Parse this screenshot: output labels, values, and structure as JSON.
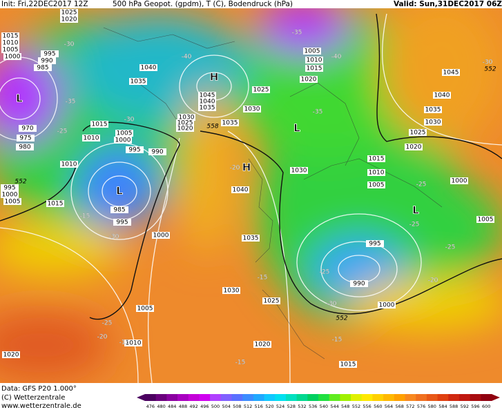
{
  "header": {
    "init": "Init: Fri,22DEC2017 12Z",
    "title": "500 hPa Geopot. (gpdm), T (C), Bodendruck (hPa)",
    "valid": "Valid: Sun,31DEC2017 06Z"
  },
  "footer": {
    "data": "Data: GFS P20 1.000°",
    "copyright": "(C) Wetterzentrale",
    "url": "www.wetterzentrale.de"
  },
  "map": {
    "pressure_labels": [
      "1025",
      "1020",
      "1015",
      "1010",
      "1005",
      "1000",
      "995",
      "990",
      "985",
      "1040",
      "1035",
      "1045",
      "1040",
      "1035",
      "1030",
      "1025",
      "1020",
      "1035",
      "1025",
      "1030",
      "1005",
      "1010",
      "1015",
      "1020",
      "1015",
      "1005",
      "1000",
      "1010",
      "995",
      "990",
      "970",
      "975",
      "980",
      "1010",
      "995",
      "1000",
      "1005",
      "1015",
      "985",
      "995",
      "1000",
      "1040",
      "1035",
      "1030",
      "1015",
      "1010",
      "1005",
      "1000",
      "1005",
      "995",
      "990",
      "1000",
      "1030",
      "1025",
      "1005",
      "1010",
      "1020",
      "1015",
      "1020",
      "1045",
      "1040",
      "1035",
      "1030",
      "1025",
      "1020"
    ],
    "temperature_labels": [
      "-30",
      "-40",
      "-35",
      "-40",
      "-30",
      "-35",
      "-30",
      "-25",
      "-35",
      "-25",
      "-25",
      "-25",
      "-20",
      "-15",
      "-30",
      "-15",
      "-25",
      "-30",
      "-25",
      "-20",
      "-15",
      "-15",
      "-15",
      "-20"
    ],
    "height_labels": [
      "552",
      "558",
      "552",
      "552"
    ],
    "centers": [
      "L",
      "L",
      "H",
      "H",
      "L",
      "L"
    ]
  },
  "colorbar": {
    "labels": [
      "476",
      "480",
      "484",
      "488",
      "492",
      "496",
      "500",
      "504",
      "508",
      "512",
      "516",
      "520",
      "524",
      "528",
      "532",
      "536",
      "540",
      "544",
      "548",
      "552",
      "556",
      "560",
      "564",
      "568",
      "572",
      "576",
      "580",
      "584",
      "588",
      "592",
      "596",
      "600"
    ],
    "colors": [
      "#4b0060",
      "#6a007d",
      "#8a00a0",
      "#a800c0",
      "#c400d8",
      "#d000f0",
      "#b040ff",
      "#8060ff",
      "#5a70ff",
      "#3c8cff",
      "#20a8ff",
      "#10c8ff",
      "#00e0f0",
      "#00e0c0",
      "#00d890",
      "#00d060",
      "#20e040",
      "#60ec20",
      "#a0f000",
      "#e0f000",
      "#ffe800",
      "#ffd000",
      "#ffb800",
      "#ffa000",
      "#f88820",
      "#f07020",
      "#e85818",
      "#e04010",
      "#d02810",
      "#c01810",
      "#a80c10",
      "#900010"
    ]
  }
}
